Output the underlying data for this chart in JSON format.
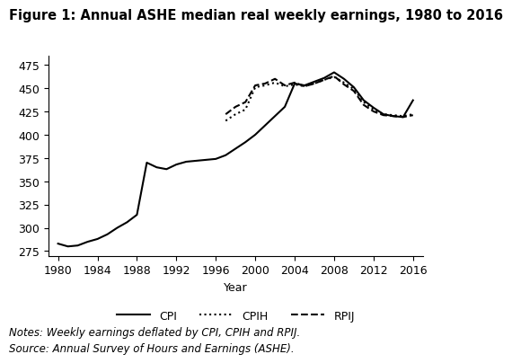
{
  "title": "Figure 1: Annual ASHE median real weekly earnings, 1980 to 2016",
  "xlabel": "Year",
  "ylabel": "",
  "xlim": [
    1979,
    2017
  ],
  "ylim": [
    270,
    485
  ],
  "yticks": [
    275,
    300,
    325,
    350,
    375,
    400,
    425,
    450,
    475
  ],
  "xticks": [
    1980,
    1984,
    1988,
    1992,
    1996,
    2000,
    2004,
    2008,
    2012,
    2016
  ],
  "notes": "Notes: Weekly earnings deflated by CPI, CPIH and RPIJ.",
  "source": "Source: Annual Survey of Hours and Earnings (ASHE).",
  "cpi_years": [
    1980,
    1981,
    1982,
    1983,
    1984,
    1985,
    1986,
    1987,
    1988,
    1989,
    1990,
    1991,
    1992,
    1993,
    1994,
    1995,
    1996,
    1997,
    1998,
    1999,
    2000,
    2001,
    2002,
    2003,
    2004,
    2005,
    2006,
    2007,
    2008,
    2009,
    2010,
    2011,
    2012,
    2013,
    2014,
    2015,
    2016
  ],
  "cpi_values": [
    283,
    280,
    281,
    285,
    288,
    293,
    300,
    306,
    314,
    370,
    365,
    363,
    368,
    371,
    372,
    373,
    374,
    378,
    385,
    392,
    400,
    410,
    420,
    430,
    455,
    453,
    457,
    461,
    467,
    460,
    451,
    437,
    429,
    422,
    420,
    419,
    437
  ],
  "cpih_years": [
    1997,
    1998,
    1999,
    2000,
    2001,
    2002,
    2003,
    2004,
    2005,
    2006,
    2007,
    2008,
    2009,
    2010,
    2011,
    2012,
    2013,
    2014,
    2015,
    2016
  ],
  "cpih_values": [
    415,
    422,
    427,
    451,
    453,
    456,
    452,
    454,
    452,
    455,
    459,
    462,
    456,
    449,
    435,
    427,
    422,
    421,
    420,
    422
  ],
  "rpij_years": [
    1997,
    1998,
    1999,
    2000,
    2001,
    2002,
    2003,
    2004,
    2005,
    2006,
    2007,
    2008,
    2009,
    2010,
    2011,
    2012,
    2013,
    2014,
    2015,
    2016
  ],
  "rpij_values": [
    422,
    430,
    435,
    453,
    455,
    460,
    453,
    456,
    452,
    455,
    459,
    463,
    454,
    447,
    432,
    425,
    421,
    420,
    419,
    421
  ],
  "line_color": "#000000",
  "bg_color": "#ffffff",
  "title_fontsize": 10.5,
  "axis_fontsize": 9,
  "legend_fontsize": 9,
  "notes_fontsize": 8.5
}
